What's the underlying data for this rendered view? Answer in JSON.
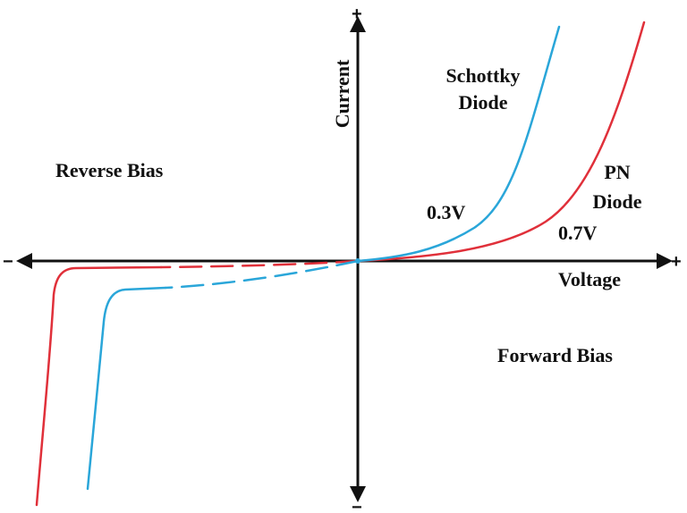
{
  "axes": {
    "y_label": "Current",
    "x_label": "Voltage",
    "y_plus": "+",
    "y_minus": "−",
    "x_plus": "+",
    "x_minus": "−"
  },
  "regions": {
    "reverse": "Reverse Bias",
    "forward": "Forward Bias"
  },
  "curves": {
    "schottky": {
      "name_line1": "Schottky",
      "name_line2": "Diode",
      "threshold": "0.3V",
      "color": "#2aa6d9"
    },
    "pn": {
      "name_line1": "PN",
      "name_line2": "Diode",
      "threshold": "0.7V",
      "color": "#e0303a"
    }
  },
  "colors": {
    "axis": "#111111",
    "schottky": "#2aa6d9",
    "pn": "#e0303a"
  }
}
